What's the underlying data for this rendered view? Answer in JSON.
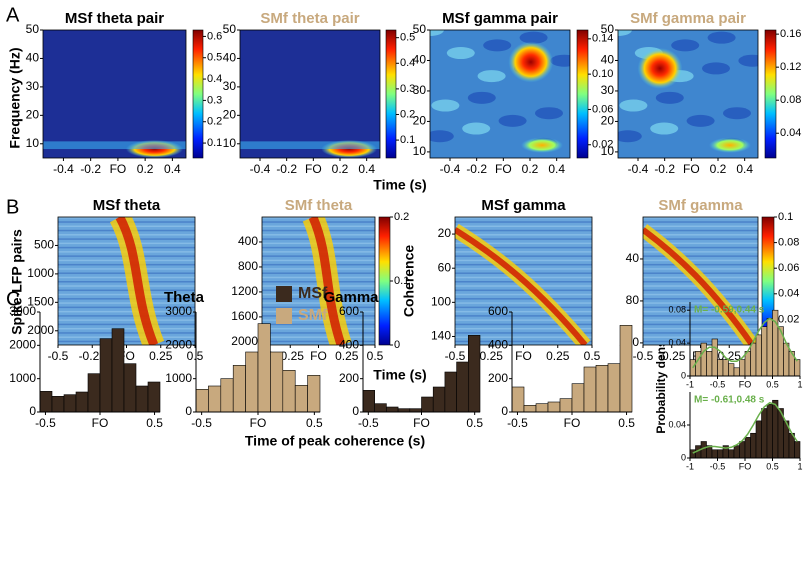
{
  "panel_labels": [
    "A",
    "B",
    "C"
  ],
  "row_a": {
    "xlabel": "Time (s)",
    "ylabel": "Frequency (Hz)"
  },
  "row_b": {
    "xlabel": "Time (s)",
    "ylabel": "Spike-LFP pairs"
  },
  "row_c": {
    "xlabel": "Time of peak coherence (s)",
    "ylabel": "Probability density"
  },
  "chart_data": [
    {
      "type": "heatmap",
      "title": "MSf theta pair",
      "title_color": "#000000",
      "xlim": [
        -0.55,
        0.5
      ],
      "xticks": [
        -0.4,
        -0.2,
        {
          "value": 0,
          "label": "FO"
        },
        0.2,
        0.4
      ],
      "ylim": [
        5,
        50
      ],
      "yticks": [
        10,
        20,
        30,
        40,
        50
      ],
      "clim": [
        0.03,
        0.63
      ],
      "cticks": [
        0.1,
        0.2,
        0.3,
        0.4,
        0.5,
        0.6
      ]
    },
    {
      "type": "heatmap",
      "title": "SMf theta pair",
      "title_color": "#c8a97e",
      "xlim": [
        -0.55,
        0.5
      ],
      "xticks": [
        -0.4,
        -0.2,
        {
          "value": 0,
          "label": "FO"
        },
        0.2,
        0.4
      ],
      "ylim": [
        5,
        50
      ],
      "yticks": [
        10,
        20,
        30,
        40,
        50
      ],
      "clim": [
        0.03,
        0.53
      ],
      "cticks": [
        0.1,
        0.2,
        0.3,
        0.4,
        0.5
      ]
    },
    {
      "type": "heatmap",
      "title": "MSf gamma pair",
      "title_color": "#000000",
      "xlim": [
        -0.55,
        0.5
      ],
      "xticks": [
        -0.4,
        -0.2,
        {
          "value": 0,
          "label": "FO"
        },
        0.2,
        0.4
      ],
      "ylim": [
        8,
        50
      ],
      "yticks": [
        10,
        20,
        30,
        40,
        50
      ],
      "clim": [
        0.005,
        0.15
      ],
      "cticks": [
        0.02,
        0.06,
        {
          "value": 0.1,
          "label": "0.10"
        },
        0.14
      ]
    },
    {
      "type": "heatmap",
      "title": "SMf gamma pair",
      "title_color": "#c8a97e",
      "xlim": [
        -0.55,
        0.5
      ],
      "xticks": [
        -0.4,
        -0.2,
        {
          "value": 0,
          "label": "FO"
        },
        0.2,
        0.4
      ],
      "ylim": [
        8,
        50
      ],
      "yticks": [
        10,
        20,
        30,
        40,
        50
      ],
      "clim": [
        0.01,
        0.165
      ],
      "cticks": [
        0.04,
        0.08,
        0.12,
        0.16
      ]
    },
    {
      "type": "heatmap",
      "title": "MSf theta",
      "title_color": "#000000",
      "xlim": [
        -0.5,
        0.5
      ],
      "xticks": [
        -0.5,
        -0.25,
        {
          "value": 0,
          "label": "FO"
        },
        0.25,
        0.5
      ],
      "ylim": [
        0,
        2250
      ],
      "y_reversed": true,
      "yticks": [
        500,
        1000,
        1500,
        2000
      ]
    },
    {
      "type": "heatmap",
      "title": "SMf theta",
      "title_color": "#c8a97e",
      "xlim": [
        -0.5,
        0.5
      ],
      "xticks": [
        -0.5,
        -0.25,
        {
          "value": 0,
          "label": "FO"
        },
        0.25,
        0.5
      ],
      "ylim": [
        0,
        2050
      ],
      "y_reversed": true,
      "yticks": [
        400,
        800,
        1200,
        1600,
        2000
      ],
      "clim": [
        0,
        0.2
      ],
      "cticks": [
        0,
        0.1,
        0.2
      ],
      "clabel": "Coherence"
    },
    {
      "type": "heatmap",
      "title": "MSf gamma",
      "title_color": "#000000",
      "xlim": [
        -0.5,
        0.5
      ],
      "xticks": [
        -0.5,
        -0.25,
        {
          "value": 0,
          "label": "FO"
        },
        0.25,
        0.5
      ],
      "ylim": [
        0,
        150
      ],
      "y_reversed": true,
      "yticks": [
        20,
        60,
        100,
        140
      ]
    },
    {
      "type": "heatmap",
      "title": "SMf gamma",
      "title_color": "#c8a97e",
      "xlim": [
        -0.5,
        0.5
      ],
      "xticks": [
        -0.5,
        -0.25,
        {
          "value": 0,
          "label": "FO"
        },
        0.25,
        0.5
      ],
      "ylim": [
        0,
        122
      ],
      "y_reversed": true,
      "yticks": [
        40,
        80,
        120
      ],
      "clim": [
        0,
        0.1
      ],
      "cticks": [
        0,
        0.02,
        0.04,
        0.06,
        0.08,
        0.1
      ]
    },
    {
      "type": "histogram",
      "legend": true,
      "bins": [
        -0.55,
        -0.44,
        -0.33,
        -0.22,
        -0.11,
        0,
        0.11,
        0.22,
        0.33,
        0.44,
        0.55
      ],
      "xlim": [
        -0.55,
        0.55
      ],
      "xticks": [
        -0.5,
        {
          "value": 0,
          "label": "FO"
        },
        0.5
      ],
      "ylim": [
        0,
        3000
      ],
      "yticks": [
        0,
        1000,
        2000,
        3000
      ],
      "series": [
        {
          "name": "MSf",
          "color": "#3b2a1e",
          "values": [
            620,
            470,
            520,
            600,
            1150,
            2200,
            2500,
            1450,
            780,
            900
          ]
        }
      ]
    },
    {
      "type": "histogram",
      "title": "Theta",
      "legend": true,
      "bins": [
        -0.55,
        -0.44,
        -0.33,
        -0.22,
        -0.11,
        0,
        0.11,
        0.22,
        0.33,
        0.44,
        0.55
      ],
      "xlim": [
        -0.55,
        0.55
      ],
      "xticks": [
        -0.5,
        {
          "value": 0,
          "label": "FO"
        },
        0.5
      ],
      "ylim": [
        0,
        3000
      ],
      "yticks": [
        0,
        1000,
        2000,
        3000
      ],
      "series": [
        {
          "name": "SMf",
          "color": "#c8a97e",
          "values": [
            680,
            780,
            1000,
            1400,
            1800,
            2650,
            1800,
            1250,
            800,
            1100
          ]
        }
      ]
    },
    {
      "type": "histogram",
      "title": "Gamma",
      "bins": [
        -0.55,
        -0.44,
        -0.33,
        -0.22,
        -0.11,
        0,
        0.11,
        0.22,
        0.33,
        0.44,
        0.55
      ],
      "xlim": [
        -0.55,
        0.55
      ],
      "xticks": [
        -0.5,
        {
          "value": 0,
          "label": "FO"
        },
        0.5
      ],
      "ylim": [
        0,
        600
      ],
      "yticks": [
        0,
        200,
        400,
        600
      ],
      "series": [
        {
          "color": "#3b2a1e",
          "values": [
            130,
            50,
            30,
            20,
            20,
            90,
            150,
            240,
            300,
            460
          ]
        }
      ]
    },
    {
      "type": "histogram",
      "bins": [
        -0.55,
        -0.44,
        -0.33,
        -0.22,
        -0.11,
        0,
        0.11,
        0.22,
        0.33,
        0.44,
        0.55
      ],
      "xlim": [
        -0.55,
        0.55
      ],
      "xticks": [
        -0.5,
        {
          "value": 0,
          "label": "FO"
        },
        0.5
      ],
      "ylim": [
        0,
        600
      ],
      "yticks": [
        0,
        200,
        400,
        600
      ],
      "series": [
        {
          "color": "#c8a97e",
          "values": [
            150,
            40,
            50,
            60,
            80,
            170,
            270,
            280,
            290,
            520
          ]
        }
      ]
    },
    {
      "type": "histogram",
      "annotation": "M= -0.59,0.44 s",
      "bins": [
        -1,
        -0.9,
        -0.8,
        -0.7,
        -0.6,
        -0.5,
        -0.4,
        -0.3,
        -0.2,
        -0.1,
        0,
        0.1,
        0.2,
        0.3,
        0.4,
        0.5,
        0.6,
        0.7,
        0.8,
        0.9,
        1
      ],
      "xlim": [
        -1,
        1
      ],
      "xticks": [
        -1,
        -0.5,
        {
          "value": 0,
          "label": "FO"
        },
        0.5,
        1
      ],
      "ylim": [
        0,
        0.09
      ],
      "yticks": [
        0,
        0.04,
        0.08
      ],
      "series": [
        {
          "color": "#c8a97e",
          "values": [
            0.02,
            0.03,
            0.04,
            0.03,
            0.045,
            0.02,
            0.02,
            0.015,
            0.01,
            0.02,
            0.03,
            0.04,
            0.05,
            0.06,
            0.07,
            0.08,
            0.06,
            0.04,
            0.03,
            0.02
          ]
        },
        {
          "style": "line",
          "color": "#6ab04c",
          "values": [
            0.01,
            0.02,
            0.03,
            0.035,
            0.035,
            0.03,
            0.022,
            0.018,
            0.018,
            0.022,
            0.03,
            0.042,
            0.055,
            0.065,
            0.07,
            0.066,
            0.055,
            0.04,
            0.028,
            0.018
          ]
        }
      ]
    },
    {
      "type": "histogram",
      "annotation": "M= -0.61,0.48 s",
      "bins": [
        -1,
        -0.9,
        -0.8,
        -0.7,
        -0.6,
        -0.5,
        -0.4,
        -0.3,
        -0.2,
        -0.1,
        0,
        0.1,
        0.2,
        0.3,
        0.4,
        0.5,
        0.6,
        0.7,
        0.8,
        0.9,
        1
      ],
      "xlim": [
        -1,
        1
      ],
      "xticks": [
        -1,
        -0.5,
        {
          "value": 0,
          "label": "FO"
        },
        0.5,
        1
      ],
      "ylim": [
        0,
        0.08
      ],
      "yticks": [
        0,
        0.04
      ],
      "series": [
        {
          "color": "#3b2a1e",
          "values": [
            0.01,
            0.015,
            0.02,
            0.015,
            0.01,
            0.01,
            0.015,
            0.01,
            0.015,
            0.02,
            0.025,
            0.03,
            0.045,
            0.06,
            0.065,
            0.07,
            0.06,
            0.045,
            0.03,
            0.02
          ]
        },
        {
          "style": "line",
          "color": "#6ab04c",
          "values": [
            0.006,
            0.009,
            0.012,
            0.014,
            0.014,
            0.013,
            0.012,
            0.013,
            0.016,
            0.021,
            0.029,
            0.04,
            0.052,
            0.062,
            0.067,
            0.065,
            0.056,
            0.043,
            0.03,
            0.02
          ]
        }
      ]
    }
  ]
}
